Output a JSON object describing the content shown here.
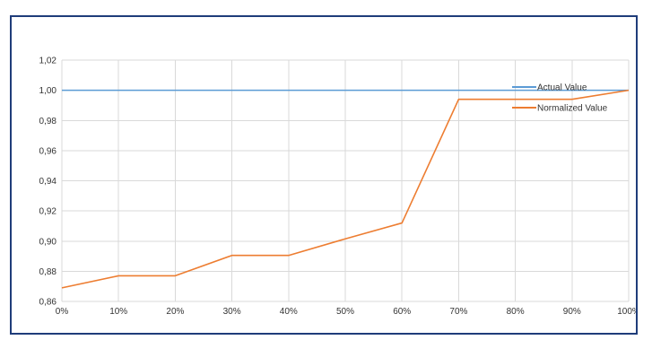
{
  "chart_data": {
    "type": "line",
    "x": [
      "0%",
      "10%",
      "20%",
      "30%",
      "40%",
      "50%",
      "60%",
      "70%",
      "80%",
      "90%",
      "100%"
    ],
    "ylim": [
      0.86,
      1.02
    ],
    "yticks": [
      "0,86",
      "0,88",
      "0,90",
      "0,92",
      "0,94",
      "0,96",
      "0,98",
      "1,00",
      "1,02"
    ],
    "ytick_values": [
      0.86,
      0.88,
      0.9,
      0.92,
      0.94,
      0.96,
      0.98,
      1.0,
      1.02
    ],
    "grid": true,
    "legend_position": "right",
    "series": [
      {
        "name": "Actual Value",
        "color": "#5b9bd5",
        "values": [
          1.0,
          1.0,
          1.0,
          1.0,
          1.0,
          1.0,
          1.0,
          1.0,
          1.0,
          1.0,
          1.0
        ]
      },
      {
        "name": "Normalized Value",
        "color": "#ed7d31",
        "values": [
          0.869,
          0.877,
          0.877,
          0.8905,
          0.8905,
          0.9015,
          0.912,
          0.994,
          0.994,
          0.994,
          1.0
        ]
      }
    ]
  }
}
